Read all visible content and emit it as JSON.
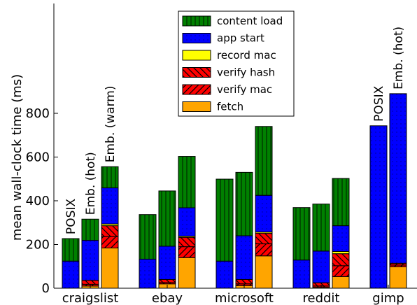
{
  "chart_data": {
    "type": "bar",
    "stacked": true,
    "ylabel": "mean wall-clock time (ms)",
    "ylim": [
      0,
      1300
    ],
    "yticks": [
      0,
      200,
      400,
      600,
      800
    ],
    "legend_position": "top-center",
    "segment_order": [
      "fetch",
      "verify mac",
      "verify hash",
      "record mac",
      "app start",
      "content load"
    ],
    "legend": [
      {
        "key": "content load",
        "label": "content load",
        "color": "#008000",
        "pattern": "vertical"
      },
      {
        "key": "app start",
        "label": "app start",
        "color": "#0000ff",
        "pattern": "dots"
      },
      {
        "key": "record mac",
        "label": "record mac",
        "color": "#ffff00",
        "pattern": "none"
      },
      {
        "key": "verify hash",
        "label": "verify hash",
        "color": "#ff0000",
        "pattern": "backslash"
      },
      {
        "key": "verify mac",
        "label": "verify mac",
        "color": "#ff0000",
        "pattern": "slash"
      },
      {
        "key": "fetch",
        "label": "fetch",
        "color": "#ffa500",
        "pattern": "none"
      }
    ],
    "groups": [
      {
        "name": "craigslist",
        "bars": [
          {
            "label": "POSIX",
            "values": {
              "fetch": 0,
              "verify mac": 0,
              "verify hash": 0,
              "record mac": 0,
              "app start": 124,
              "content load": 103
            }
          },
          {
            "label": "Emb. (hot)",
            "values": {
              "fetch": 10,
              "verify mac": 8,
              "verify hash": 18,
              "record mac": 0,
              "app start": 183,
              "content load": 97
            }
          },
          {
            "label": "Emb. (warm)",
            "values": {
              "fetch": 184,
              "verify mac": 52,
              "verify hash": 50,
              "record mac": 8,
              "app start": 165,
              "content load": 97
            }
          }
        ]
      },
      {
        "name": "ebay",
        "bars": [
          {
            "label": "",
            "values": {
              "fetch": 0,
              "verify mac": 0,
              "verify hash": 0,
              "record mac": 0,
              "app start": 133,
              "content load": 204
            }
          },
          {
            "label": "",
            "values": {
              "fetch": 20,
              "verify mac": 6,
              "verify hash": 14,
              "record mac": 0,
              "app start": 152,
              "content load": 253
            }
          },
          {
            "label": "",
            "values": {
              "fetch": 140,
              "verify mac": 50,
              "verify hash": 43,
              "record mac": 5,
              "app start": 130,
              "content load": 235
            }
          }
        ]
      },
      {
        "name": "microsoft",
        "bars": [
          {
            "label": "",
            "values": {
              "fetch": 0,
              "verify mac": 0,
              "verify hash": 0,
              "record mac": 0,
              "app start": 124,
              "content load": 375
            }
          },
          {
            "label": "",
            "values": {
              "fetch": 12,
              "verify mac": 8,
              "verify hash": 20,
              "record mac": 0,
              "app start": 200,
              "content load": 290
            }
          },
          {
            "label": "",
            "values": {
              "fetch": 148,
              "verify mac": 55,
              "verify hash": 48,
              "record mac": 6,
              "app start": 168,
              "content load": 315
            }
          }
        ]
      },
      {
        "name": "reddit",
        "bars": [
          {
            "label": "",
            "values": {
              "fetch": 0,
              "verify mac": 0,
              "verify hash": 0,
              "record mac": 0,
              "app start": 129,
              "content load": 240
            }
          },
          {
            "label": "",
            "values": {
              "fetch": 4,
              "verify mac": 6,
              "verify hash": 15,
              "record mac": 0,
              "app start": 145,
              "content load": 215
            }
          },
          {
            "label": "",
            "values": {
              "fetch": 53,
              "verify mac": 50,
              "verify hash": 55,
              "record mac": 10,
              "app start": 118,
              "content load": 216
            }
          }
        ]
      },
      {
        "name": "gimp",
        "bars": [
          {
            "label": "POSIX",
            "values": {
              "fetch": 0,
              "verify mac": 0,
              "verify hash": 0,
              "record mac": 0,
              "app start": 743,
              "content load": 0
            }
          },
          {
            "label": "Emb. (hot)",
            "values": {
              "fetch": 98,
              "verify mac": 8,
              "verify hash": 8,
              "record mac": 0,
              "app start": 776,
              "content load": 0
            }
          }
        ]
      }
    ]
  }
}
